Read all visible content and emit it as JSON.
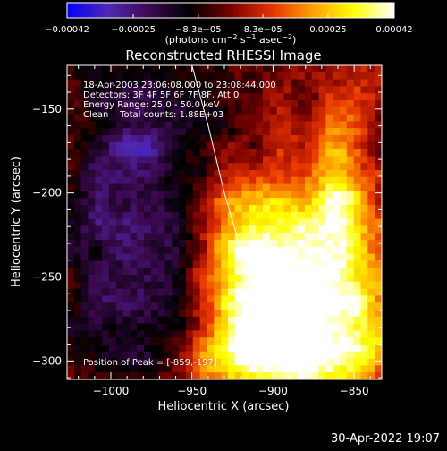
{
  "chart_data": {
    "type": "heatmap",
    "title": "Reconstructed RHESSI Image",
    "xlabel": "Heliocentric X (arcsec)",
    "ylabel": "Heliocentric Y (arcsec)",
    "xlim": [
      -1027,
      -833
    ],
    "ylim": [
      -311,
      -124
    ],
    "x_ticks": [
      -1000,
      -950,
      -900,
      -850
    ],
    "x_tick_labels": [
      "−1000",
      "−950",
      "−900",
      "−850"
    ],
    "y_ticks": [
      -150,
      -200,
      -250,
      -300
    ],
    "y_tick_labels": [
      "−150",
      "−200",
      "−250",
      "−300"
    ],
    "colorbar": {
      "range": [
        -0.00042,
        0.00042
      ],
      "ticks": [
        -0.00042,
        -0.00025,
        -8.3e-05,
        8.3e-05,
        0.00025,
        0.00042
      ],
      "tick_labels": [
        "−0.00042",
        "−0.00025",
        "−8.3e−05",
        "8.3e−05",
        "0.00025",
        "0.00042"
      ],
      "unit_label": "(photons cm",
      "unit_sup1": "−2",
      "unit_mid": " s",
      "unit_sup2": "−1",
      "unit_end": " asec",
      "unit_sup3": "−2",
      "unit_close": ")"
    },
    "annotations": [
      "18-Apr-2003 23:06:08.000 to 23:08:44.000",
      "Detectors: 3F 4F 5F 6F 7F 8F, Att 0",
      "Energy Range: 25.0 - 50.0 keV",
      "Clean    Total counts: 1.88E+03"
    ],
    "peak_label": "Position of Peak = [-859,-197]",
    "peak": [
      -859,
      -197
    ],
    "limb": [
      [
        -950,
        -124
      ],
      [
        -940,
        -160
      ],
      [
        -930,
        -200
      ],
      [
        -918,
        -240
      ],
      [
        -905,
        -280
      ],
      [
        -898,
        -311
      ]
    ],
    "colormap": [
      "#0000ff",
      "#5028b4",
      "#3c0a50",
      "#000000",
      "#780000",
      "#e63200",
      "#ffa000",
      "#ffff00",
      "#ffffff"
    ],
    "regions": [
      {
        "x": -880,
        "y": -255,
        "value": 0.00035,
        "sx": 30,
        "sy": 38
      },
      {
        "x": -885,
        "y": -295,
        "value": 0.00028,
        "sx": 35,
        "sy": 14
      },
      {
        "x": -905,
        "y": -265,
        "value": 0.00022,
        "sx": 22,
        "sy": 35
      },
      {
        "x": -860,
        "y": -200,
        "value": 0.00024,
        "sx": 12,
        "sy": 35
      },
      {
        "x": -920,
        "y": -225,
        "value": 0.00016,
        "sx": 18,
        "sy": 28
      },
      {
        "x": -935,
        "y": -295,
        "value": 0.00012,
        "sx": 22,
        "sy": 14
      },
      {
        "x": -845,
        "y": -270,
        "value": 0.00013,
        "sx": 12,
        "sy": 30
      },
      {
        "x": -990,
        "y": -200,
        "value": -0.00022,
        "sx": 30,
        "sy": 45
      },
      {
        "x": -985,
        "y": -275,
        "value": -0.00015,
        "sx": 30,
        "sy": 32
      },
      {
        "x": -965,
        "y": -155,
        "value": -0.0001,
        "sx": 30,
        "sy": 25
      }
    ],
    "noise_amplitude": 9e-05,
    "noise_seed": 12
  },
  "footer": {
    "timestamp": "30-Apr-2022 19:07"
  }
}
